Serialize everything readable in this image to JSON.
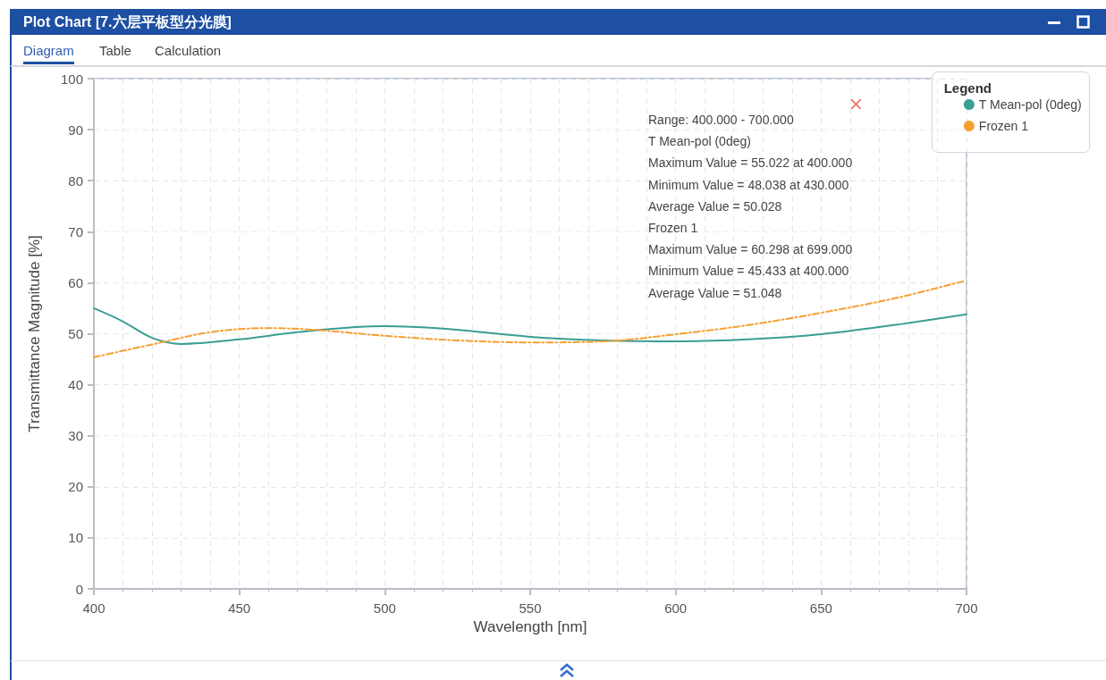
{
  "chart_data": {
    "type": "line",
    "title": "Plot Chart [7.六层平板型分光膜]",
    "xlabel": "Wavelength [nm]",
    "ylabel": "Transmittance Magnitude [%]",
    "legend_title": "Legend",
    "legend": "top right",
    "grid": true,
    "marker": "none",
    "xlim": [
      400,
      700
    ],
    "xticks": [
      400,
      450,
      500,
      550,
      600,
      650,
      700
    ],
    "ylim": [
      0,
      100
    ],
    "yticks": [
      0,
      10,
      20,
      30,
      40,
      50,
      60,
      70,
      80,
      90,
      100
    ],
    "series": [
      {
        "name": "T Mean-pol (0deg)",
        "color": "#3a9e93",
        "line_style": "solid",
        "x": [
          400,
          410,
          420,
          430,
          450,
          470,
          490,
          500,
          520,
          550,
          575,
          600,
          625,
          650,
          675,
          700
        ],
        "values": [
          55.0,
          52.4,
          49.2,
          48.0,
          48.9,
          50.3,
          51.3,
          51.5,
          51.0,
          49.4,
          48.7,
          48.5,
          48.9,
          49.9,
          51.7,
          53.8
        ]
      },
      {
        "name": "Frozen 1",
        "color": "#f5a033",
        "line_style": "dashed",
        "x": [
          400,
          420,
          440,
          460,
          475,
          500,
          525,
          550,
          575,
          600,
          625,
          650,
          675,
          699
        ],
        "values": [
          45.4,
          47.9,
          50.3,
          51.1,
          50.8,
          49.6,
          48.7,
          48.3,
          48.5,
          49.9,
          51.7,
          54.1,
          56.9,
          60.3
        ]
      },
      {
        "type": "scatter",
        "color": "#e8403a",
        "marker": "cross",
        "x": [
          662
        ],
        "values": [
          95
        ]
      }
    ],
    "annotations": [
      "Diagram",
      "Table",
      "Calculation",
      "Range: 400.000 - 700.000",
      "T Mean-pol (0deg)",
      "Maximum Value = 55.022 at 400.000",
      "Minimum Value = 48.038 at 430.000",
      "Average Value = 50.028",
      "Frozen 1",
      "Maximum Value = 60.298 at 699.000",
      "Minimum Value = 45.433 at 400.000",
      "Average Value = 51.048"
    ]
  }
}
